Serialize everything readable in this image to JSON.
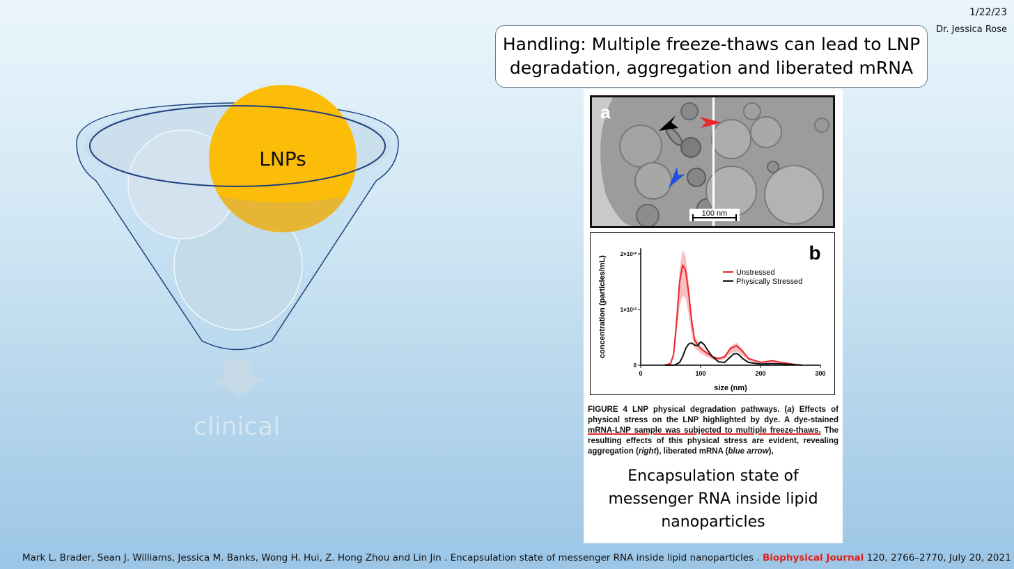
{
  "header": {
    "date": "1/22/23",
    "author": "Dr. Jessica Rose"
  },
  "title": "Handling: Multiple freeze-thaws can lead to LNP degradation, aggregation and liberated mRNA",
  "funnel": {
    "highlight_label": "LNPs",
    "output_label": "clinical",
    "highlight_color": "#fbbd08"
  },
  "figure": {
    "panel_a": {
      "label": "a",
      "scale_bar": "100 nm"
    },
    "panel_b": {
      "label": "b",
      "chart_data": {
        "type": "line",
        "xlabel": "size (nm)",
        "ylabel": "concentration (particles/mL)",
        "xlim": [
          0,
          300
        ],
        "ylim": [
          0,
          2100000000000.0
        ],
        "x_ticks": [
          "0",
          "100",
          "200",
          "300"
        ],
        "y_ticks": [
          "0",
          "1×10¹²",
          "2×10¹²"
        ],
        "legend_position": "top-right",
        "series": [
          {
            "name": "Unstressed",
            "color": "#e8262b",
            "x": [
              40,
              50,
              55,
              60,
              65,
              70,
              75,
              80,
              85,
              90,
              100,
              110,
              120,
              130,
              140,
              150,
              160,
              170,
              180,
              200,
              220,
              240,
              260,
              270
            ],
            "y": [
              0,
              30000000000.0,
              200000000000.0,
              800000000000.0,
              1500000000000.0,
              1800000000000.0,
              1700000000000.0,
              1300000000000.0,
              800000000000.0,
              450000000000.0,
              300000000000.0,
              220000000000.0,
              150000000000.0,
              120000000000.0,
              150000000000.0,
              300000000000.0,
              350000000000.0,
              250000000000.0,
              120000000000.0,
              50000000000.0,
              80000000000.0,
              40000000000.0,
              10000000000.0,
              0
            ]
          },
          {
            "name": "Physically Stressed",
            "color": "#111111",
            "x": [
              40,
              55,
              60,
              65,
              70,
              75,
              80,
              85,
              90,
              95,
              100,
              105,
              110,
              115,
              120,
              130,
              140,
              150,
              155,
              160,
              165,
              170,
              180,
              200,
              220,
              240,
              260,
              270
            ],
            "y": [
              0,
              0,
              20000000000.0,
              50000000000.0,
              150000000000.0,
              300000000000.0,
              380000000000.0,
              400000000000.0,
              360000000000.0,
              350000000000.0,
              420000000000.0,
              380000000000.0,
              300000000000.0,
              220000000000.0,
              150000000000.0,
              60000000000.0,
              50000000000.0,
              150000000000.0,
              200000000000.0,
              210000000000.0,
              180000000000.0,
              120000000000.0,
              50000000000.0,
              20000000000.0,
              30000000000.0,
              20000000000.0,
              10000000000.0,
              0
            ]
          }
        ]
      }
    },
    "caption": {
      "lead": "FIGURE 4   LNP physical degradation pathways. (",
      "a": "a",
      "p1": ") Effects of physical stress on the LNP highlighted by dye. A dye-stained ",
      "underlined": "mRNA-LNP sample was subjected to multiple freeze-thaws.",
      "p2": " The resulting effects of this physical stress are evident, revealing aggregation (",
      "right": "right",
      "p3": "), liberated mRNA (",
      "blue_arrow": "blue arrow",
      "p4": "),"
    },
    "encapsulation_title": "Encapsulation state of messenger RNA inside lipid nanoparticles"
  },
  "citation": {
    "authors": "Mark L. Brader, Sean J. Williams, Jessica M. Banks, Wong H. Hui, Z. Hong Zhou and Lin Jin . Encapsulation state of messenger RNA inside lipid nanoparticles . ",
    "journal": "Biophysical Journal",
    "details": " 120, 2766–2770, July 20, 2021"
  }
}
